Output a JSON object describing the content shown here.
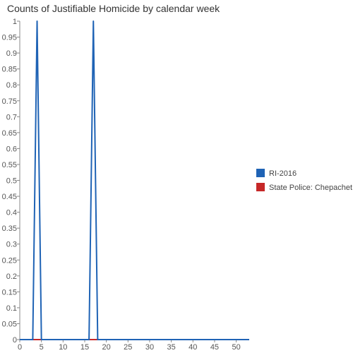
{
  "chart_data": {
    "type": "line",
    "title": "Counts of Justifiable Homicide by calendar week",
    "xlabel": "",
    "ylabel": "",
    "xlim": [
      0,
      53
    ],
    "ylim": [
      0,
      1
    ],
    "x_ticks": [
      0,
      5,
      10,
      15,
      20,
      25,
      30,
      35,
      40,
      45,
      50
    ],
    "y_ticks": [
      0,
      0.05,
      0.1,
      0.15,
      0.2,
      0.25,
      0.3,
      0.35,
      0.4,
      0.45,
      0.5,
      0.55,
      0.6,
      0.65,
      0.7,
      0.75,
      0.8,
      0.85,
      0.9,
      0.95,
      1
    ],
    "y_tick_labels": [
      "0",
      "0.05",
      "0.1",
      "0.15",
      "0.2",
      "0.25",
      "0.3",
      "0.35",
      "0.4",
      "0.45",
      "0.5",
      "0.55",
      "0.6",
      "0.65",
      "0.7",
      "0.75",
      "0.8",
      "0.85",
      "0.9",
      "0.95",
      "1"
    ],
    "grid": false,
    "legend_position": "right",
    "series": [
      {
        "name": "RI-2016",
        "color": "#1f63b5",
        "x": [
          0,
          3,
          4,
          5,
          16,
          17,
          18,
          53
        ],
        "y": [
          0,
          0,
          1,
          0,
          0,
          1,
          0,
          0
        ]
      },
      {
        "name": "State Police: Chepachet",
        "color": "#c62828",
        "x": [
          0,
          53
        ],
        "y": [
          0,
          0
        ]
      }
    ]
  }
}
